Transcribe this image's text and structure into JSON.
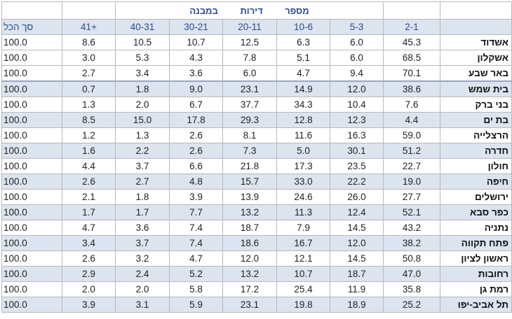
{
  "header": {
    "banner_words": [
      "מספר",
      "דירות",
      "במבנה"
    ]
  },
  "columns": [
    "סך הכל",
    "41+",
    "40-31",
    "30-21",
    "20-11",
    "10-6",
    "5-3",
    "2-1"
  ],
  "rows": [
    {
      "city": "אשדוד",
      "values": [
        "100.0",
        "8.6",
        "10.5",
        "10.7",
        "12.5",
        "6.3",
        "6.0",
        "45.3"
      ]
    },
    {
      "city": "אשקלון",
      "values": [
        "100.0",
        "3.0",
        "5.3",
        "4.3",
        "7.8",
        "5.1",
        "6.0",
        "68.5"
      ]
    },
    {
      "city": "באר שבע",
      "values": [
        "100.0",
        "2.7",
        "3.4",
        "3.6",
        "6.0",
        "4.7",
        "9.4",
        "70.1"
      ]
    },
    {
      "city": "בית שמש",
      "values": [
        "100.0",
        "0.7",
        "1.8",
        "9.0",
        "23.1",
        "14.9",
        "12.0",
        "38.6"
      ]
    },
    {
      "city": "בני ברק",
      "values": [
        "100.0",
        "1.3",
        "2.0",
        "6.7",
        "37.7",
        "34.3",
        "10.4",
        "7.6"
      ]
    },
    {
      "city": "בת ים",
      "values": [
        "100.0",
        "8.5",
        "15.0",
        "17.8",
        "29.3",
        "12.8",
        "12.3",
        "4.4"
      ]
    },
    {
      "city": "הרצלייה",
      "values": [
        "100.0",
        "1.2",
        "1.3",
        "2.6",
        "8.1",
        "11.6",
        "16.3",
        "59.0"
      ]
    },
    {
      "city": "חדרה",
      "values": [
        "100.0",
        "1.6",
        "2.2",
        "2.6",
        "7.3",
        "5.0",
        "30.1",
        "51.2"
      ]
    },
    {
      "city": "חולון",
      "values": [
        "100.0",
        "4.4",
        "3.7",
        "6.6",
        "21.8",
        "17.3",
        "23.5",
        "22.7"
      ]
    },
    {
      "city": "חיפה",
      "values": [
        "100.0",
        "2.6",
        "2.7",
        "4.8",
        "15.7",
        "33.0",
        "22.2",
        "19.0"
      ]
    },
    {
      "city": "ירושלים",
      "values": [
        "100.0",
        "2.1",
        "1.8",
        "3.9",
        "13.9",
        "24.6",
        "26.0",
        "27.7"
      ]
    },
    {
      "city": "כפר סבא",
      "values": [
        "100.0",
        "1.7",
        "1.7",
        "7.7",
        "13.2",
        "11.3",
        "12.4",
        "52.1"
      ]
    },
    {
      "city": "נתניה",
      "values": [
        "100.0",
        "4.7",
        "3.6",
        "7.4",
        "18.7",
        "7.9",
        "14.5",
        "43.2"
      ]
    },
    {
      "city": "פתח תקווה",
      "values": [
        "100.0",
        "3.4",
        "3.7",
        "7.4",
        "18.6",
        "16.7",
        "12.0",
        "38.2"
      ]
    },
    {
      "city": "ראשון לציון",
      "values": [
        "100.0",
        "2.6",
        "3.2",
        "4.7",
        "12.0",
        "12.1",
        "14.5",
        "50.8"
      ]
    },
    {
      "city": "רחובות",
      "values": [
        "100.0",
        "2.9",
        "2.4",
        "5.2",
        "13.2",
        "10.7",
        "18.7",
        "47.0"
      ]
    },
    {
      "city": "רמת גן",
      "values": [
        "100.0",
        "2.0",
        "2.0",
        "5.8",
        "17.2",
        "25.4",
        "11.9",
        "35.8"
      ]
    },
    {
      "city": "תל אביב-יפו",
      "values": [
        "100.0",
        "3.9",
        "3.1",
        "5.9",
        "23.1",
        "19.8",
        "18.9",
        "25.2"
      ]
    }
  ],
  "banding": [
    false,
    false,
    false,
    true,
    false,
    true,
    false,
    true,
    false,
    true,
    false,
    true,
    false,
    true,
    false,
    true,
    false,
    true
  ]
}
